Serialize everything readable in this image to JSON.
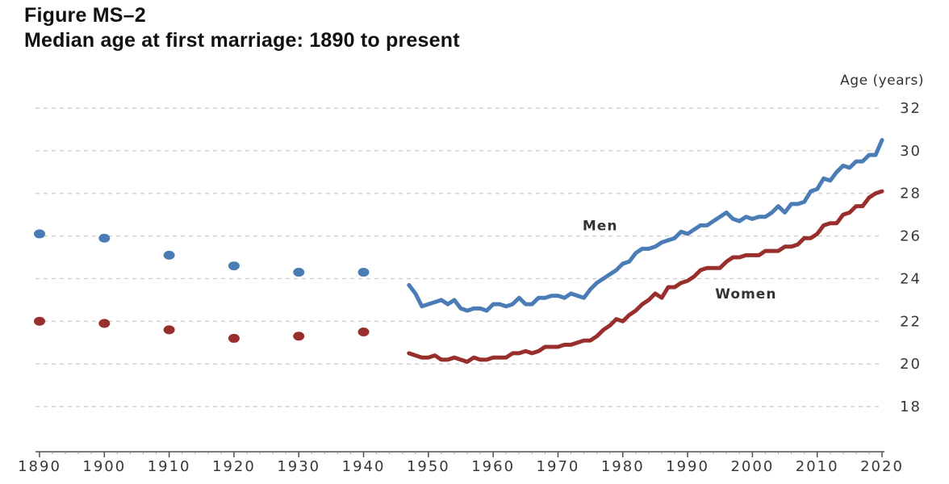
{
  "title": {
    "line1": "Figure MS–2",
    "line2": "Median age at first marriage: 1890 to present"
  },
  "chart_data": {
    "type": "line",
    "title": "Median age at first marriage: 1890 to present",
    "y_axis": {
      "label": "Age (years)",
      "ticks": [
        32,
        30,
        28,
        26,
        24,
        22,
        20,
        18
      ],
      "min": 18,
      "max": 32,
      "gridlines": "dashed"
    },
    "x_axis": {
      "tick_years": [
        1890,
        1900,
        1910,
        1920,
        1930,
        1940,
        1950,
        1960,
        1970,
        1980,
        1990,
        2000,
        2010,
        2020
      ],
      "min": 1890,
      "max": 2020,
      "minor_tick_step": 2
    },
    "series": [
      {
        "name": "Men",
        "color": "#4a7cb5",
        "dots": {
          "years": [
            1890,
            1900,
            1910,
            1920,
            1930,
            1940
          ],
          "values": [
            26.1,
            25.9,
            25.1,
            24.6,
            24.3,
            24.3
          ]
        },
        "line": {
          "start_year": 1947,
          "end_year": 2020,
          "values": [
            23.7,
            23.3,
            22.7,
            22.8,
            22.9,
            23.0,
            22.8,
            23.0,
            22.6,
            22.5,
            22.6,
            22.6,
            22.5,
            22.8,
            22.8,
            22.7,
            22.8,
            23.1,
            22.8,
            22.8,
            23.1,
            23.1,
            23.2,
            23.2,
            23.1,
            23.3,
            23.2,
            23.1,
            23.5,
            23.8,
            24.0,
            24.2,
            24.4,
            24.7,
            24.8,
            25.2,
            25.4,
            25.4,
            25.5,
            25.7,
            25.8,
            25.9,
            26.2,
            26.1,
            26.3,
            26.5,
            26.5,
            26.7,
            26.9,
            27.1,
            26.8,
            26.7,
            26.9,
            26.8,
            26.9,
            26.9,
            27.1,
            27.4,
            27.1,
            27.5,
            27.5,
            27.6,
            28.1,
            28.2,
            28.7,
            28.6,
            29.0,
            29.3,
            29.2,
            29.5,
            29.5,
            29.8,
            29.8,
            30.5
          ]
        }
      },
      {
        "name": "Women",
        "color": "#992f2c",
        "dots": {
          "years": [
            1890,
            1900,
            1910,
            1920,
            1930,
            1940
          ],
          "values": [
            22.0,
            21.9,
            21.6,
            21.2,
            21.3,
            21.5
          ]
        },
        "line": {
          "start_year": 1947,
          "end_year": 2020,
          "values": [
            20.5,
            20.4,
            20.3,
            20.3,
            20.4,
            20.2,
            20.2,
            20.3,
            20.2,
            20.1,
            20.3,
            20.2,
            20.2,
            20.3,
            20.3,
            20.3,
            20.5,
            20.5,
            20.6,
            20.5,
            20.6,
            20.8,
            20.8,
            20.8,
            20.9,
            20.9,
            21.0,
            21.1,
            21.1,
            21.3,
            21.6,
            21.8,
            22.1,
            22.0,
            22.3,
            22.5,
            22.8,
            23.0,
            23.3,
            23.1,
            23.6,
            23.6,
            23.8,
            23.9,
            24.1,
            24.4,
            24.5,
            24.5,
            24.5,
            24.8,
            25.0,
            25.0,
            25.1,
            25.1,
            25.1,
            25.3,
            25.3,
            25.3,
            25.5,
            25.5,
            25.6,
            25.9,
            25.9,
            26.1,
            26.5,
            26.6,
            26.6,
            27.0,
            27.1,
            27.4,
            27.4,
            27.8,
            28.0,
            28.1
          ]
        }
      }
    ],
    "annotations": [
      {
        "text": "Men",
        "year": 1976.5,
        "age": 26.5
      },
      {
        "text": "Women",
        "year": 1999.0,
        "age": 23.3
      }
    ],
    "colors": {
      "men": "#4a7cb5",
      "women": "#992f2c",
      "grid": "#cfcfcf",
      "axis": "#4d4d4d",
      "tick_text": "#383838",
      "title_text": "#111111"
    }
  }
}
